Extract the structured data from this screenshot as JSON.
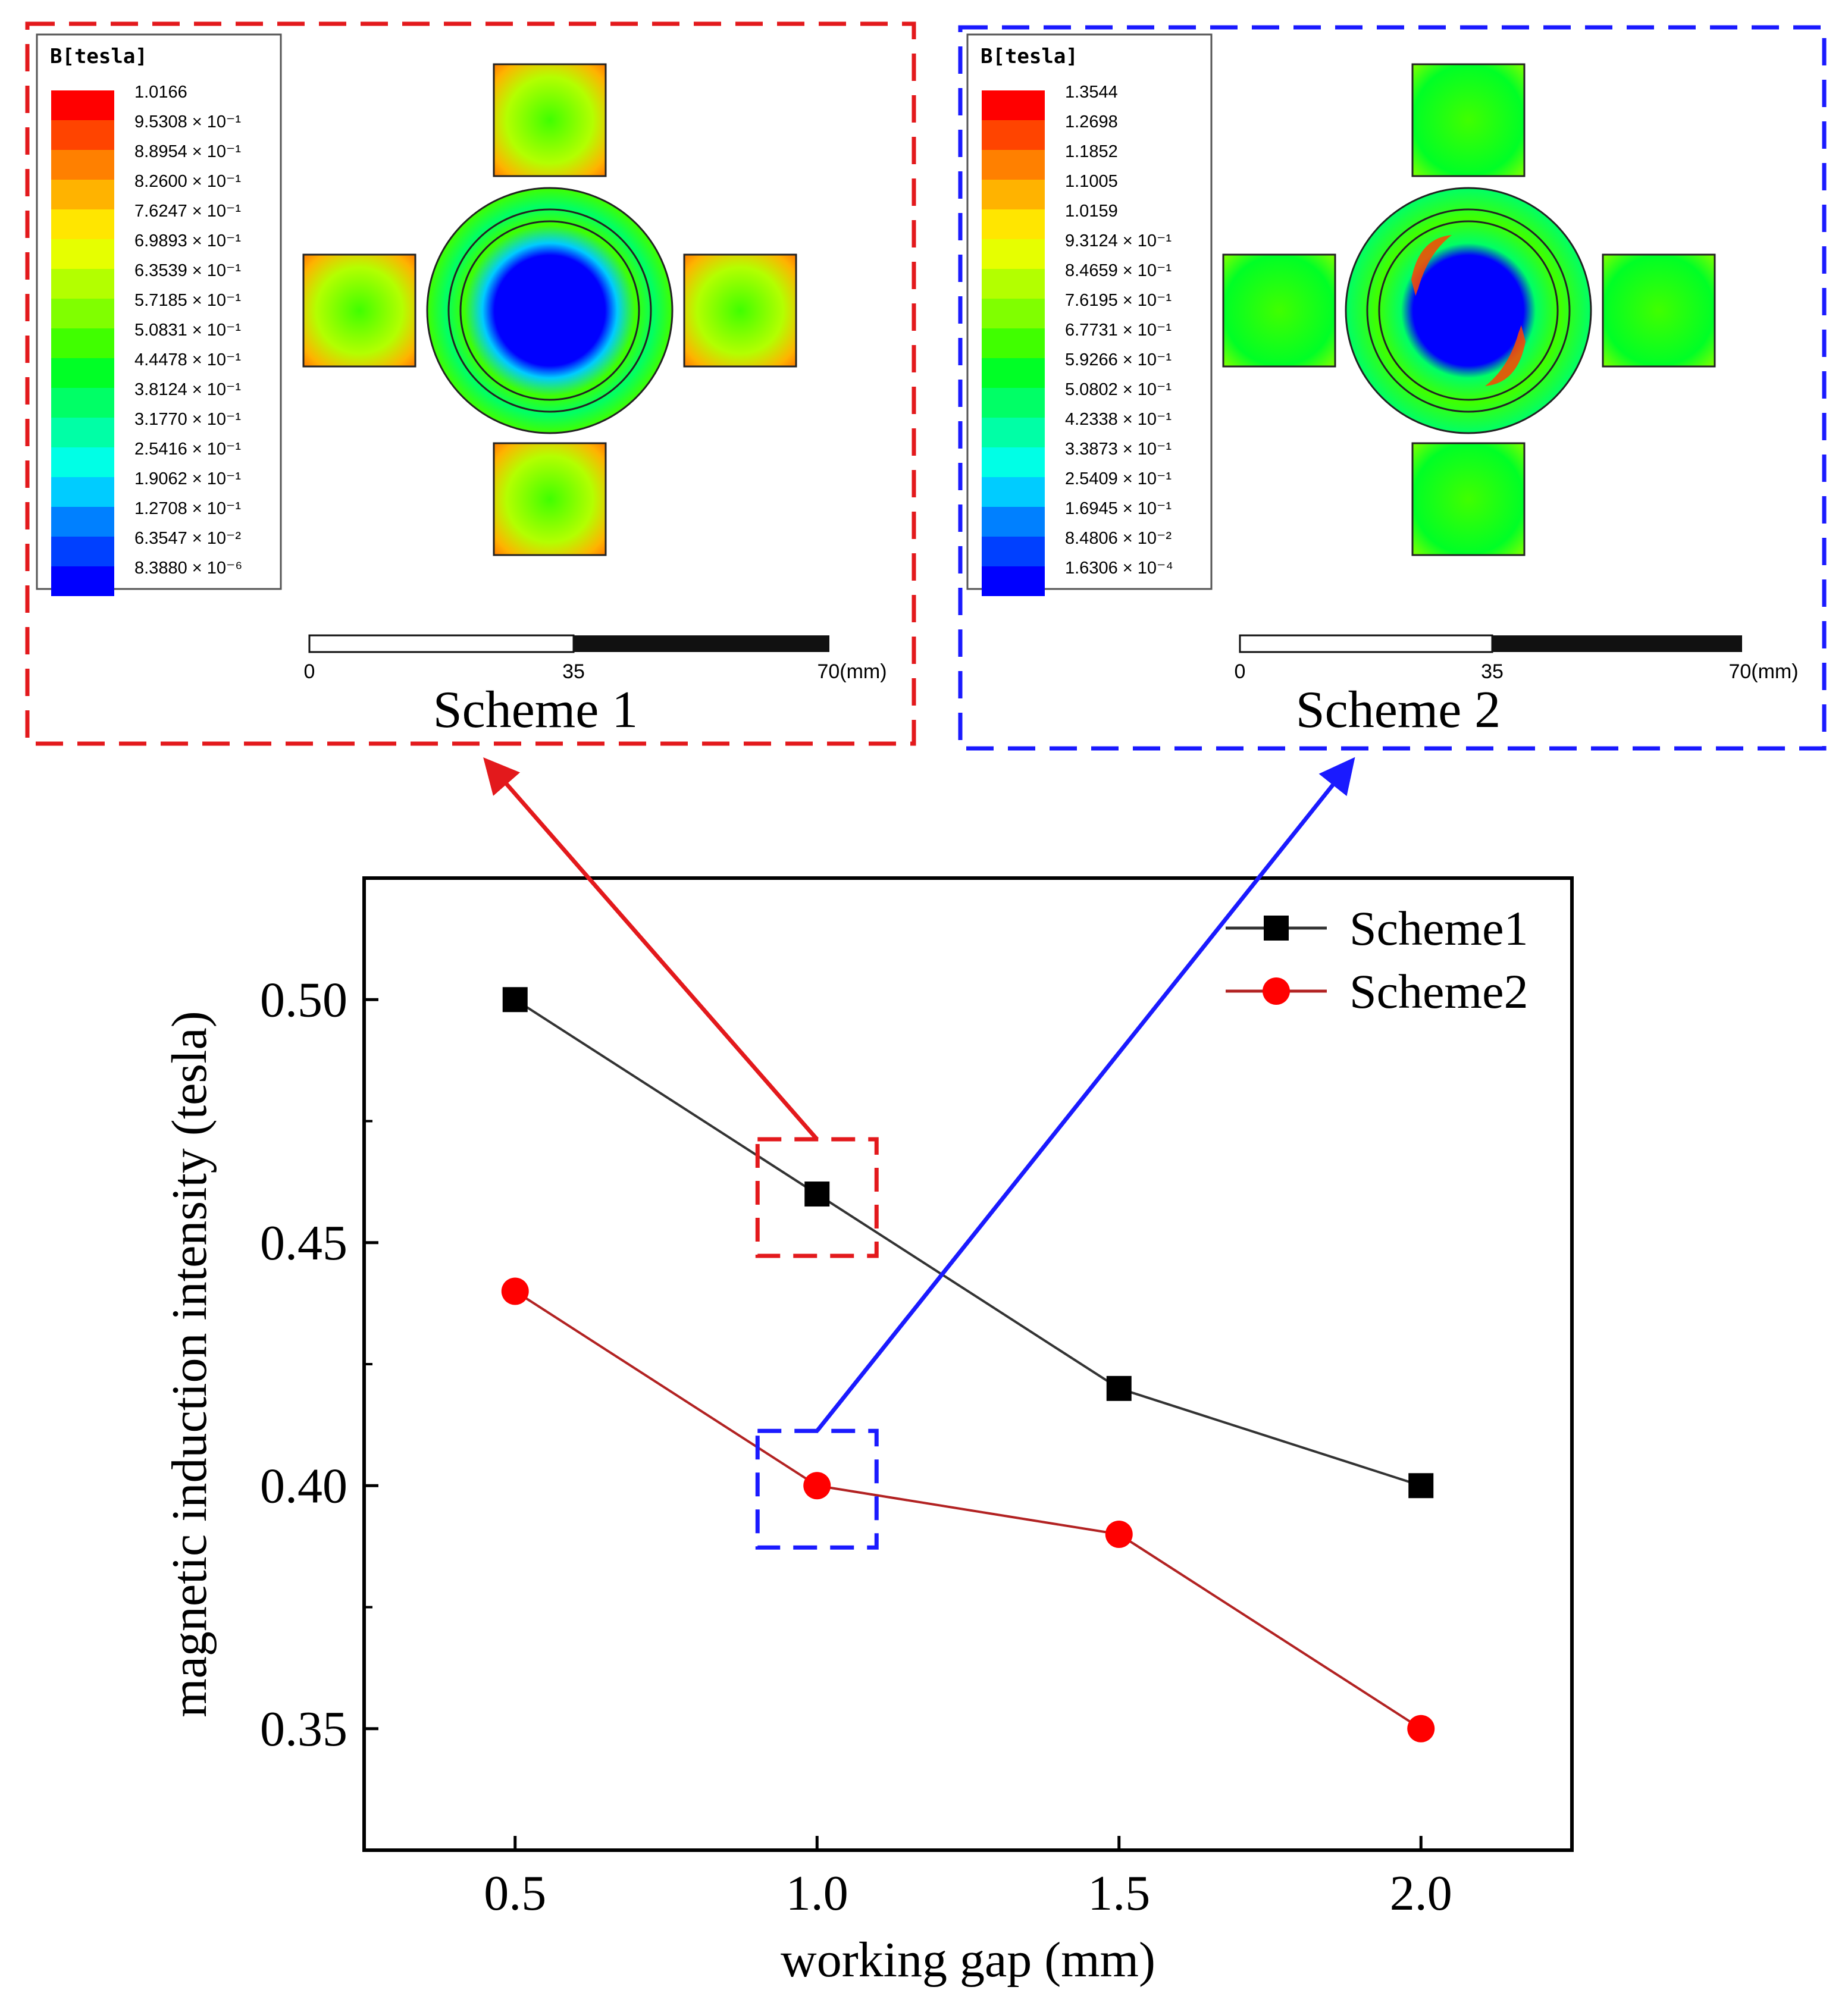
{
  "figure": {
    "scheme1": {
      "title": "Scheme 1",
      "frame_color": "#e3191c",
      "legend_title": "B[tesla]",
      "legend_values": [
        "1.0166",
        "9.5308 × 10⁻¹",
        "8.8954 × 10⁻¹",
        "8.2600 × 10⁻¹",
        "7.6247 × 10⁻¹",
        "6.9893 × 10⁻¹",
        "6.3539 × 10⁻¹",
        "5.7185 × 10⁻¹",
        "5.0831 × 10⁻¹",
        "4.4478 × 10⁻¹",
        "3.8124 × 10⁻¹",
        "3.1770 × 10⁻¹",
        "2.5416 × 10⁻¹",
        "1.9062 × 10⁻¹",
        "1.2708 × 10⁻¹",
        "6.3547 × 10⁻²",
        "8.3880 × 10⁻⁶"
      ],
      "scale_labels": [
        "0",
        "35",
        "70(mm)"
      ]
    },
    "scheme2": {
      "title": "Scheme 2",
      "frame_color": "#1a1aff",
      "legend_title": "B[tesla]",
      "legend_values": [
        "1.3544",
        "1.2698",
        "1.1852",
        "1.1005",
        "1.0159",
        "9.3124 × 10⁻¹",
        "8.4659 × 10⁻¹",
        "7.6195 × 10⁻¹",
        "6.7731 × 10⁻¹",
        "5.9266 × 10⁻¹",
        "5.0802 × 10⁻¹",
        "4.2338 × 10⁻¹",
        "3.3873 × 10⁻¹",
        "2.5409 × 10⁻¹",
        "1.6945 × 10⁻¹",
        "8.4806 × 10⁻²",
        "1.6306 × 10⁻⁴"
      ],
      "scale_labels": [
        "0",
        "35",
        "70(mm)"
      ]
    },
    "colormap": [
      "#ff0000",
      "#ff4400",
      "#ff8000",
      "#ffb300",
      "#ffe600",
      "#e6ff00",
      "#b3ff00",
      "#80ff00",
      "#40ff00",
      "#00ff26",
      "#00ff66",
      "#00ffa6",
      "#00ffe6",
      "#00ccff",
      "#0080ff",
      "#0040ff",
      "#0000ff"
    ]
  },
  "chart_data": {
    "type": "line",
    "title": "",
    "xlabel": "working gap (mm)",
    "ylabel": "magnetic induction intensity (tesla)",
    "x": [
      0.5,
      1.0,
      1.5,
      2.0
    ],
    "xticks": [
      "0.5",
      "1.0",
      "1.5",
      "2.0"
    ],
    "yticks": [
      "0.35",
      "0.40",
      "0.45",
      "0.50"
    ],
    "xlim": [
      0.25,
      2.25
    ],
    "ylim": [
      0.325,
      0.525
    ],
    "legend_position": "top-right",
    "series": [
      {
        "name": "Scheme1",
        "values": [
          0.5,
          0.46,
          0.42,
          0.4
        ],
        "color": "#000000",
        "line_color": "#333333",
        "marker": "square"
      },
      {
        "name": "Scheme2",
        "values": [
          0.44,
          0.4,
          0.39,
          0.35
        ],
        "color": "#ff0000",
        "line_color": "#b22222",
        "marker": "circle"
      }
    ],
    "highlight_x": 1.0,
    "highlight_colors": [
      "#e3191c",
      "#1a1aff"
    ]
  }
}
